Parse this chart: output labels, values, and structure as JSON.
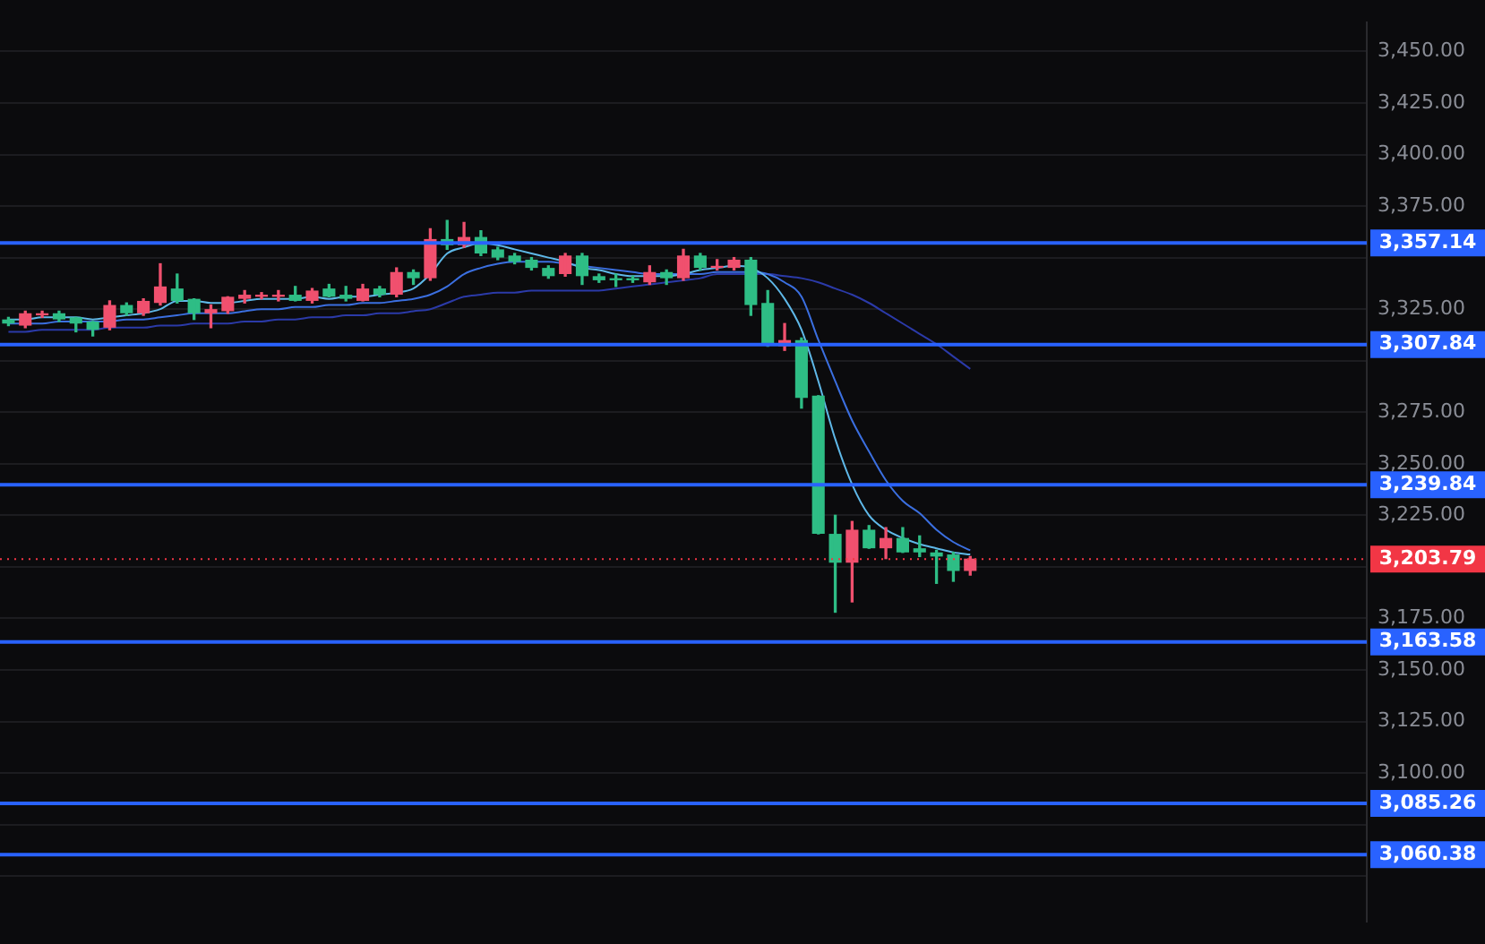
{
  "chart_data": {
    "type": "candlestick",
    "categories": [
      null,
      null,
      null,
      null,
      null,
      null,
      null,
      null,
      null,
      null,
      null,
      null,
      null,
      null,
      null,
      null,
      null,
      null,
      null,
      null,
      null,
      null,
      null,
      null,
      null,
      null,
      null,
      null,
      null,
      null,
      null,
      null,
      null,
      null,
      null,
      null,
      null,
      null,
      null,
      null,
      null,
      null,
      null,
      null,
      null,
      null,
      null,
      null,
      null,
      null,
      null,
      null,
      null,
      null,
      null,
      null,
      null,
      null,
      null,
      null,
      null,
      null,
      null,
      null,
      null,
      null,
      null,
      null,
      null,
      null,
      null,
      null,
      null,
      null,
      null,
      null,
      null,
      null,
      null,
      null,
      null
    ],
    "ohlc": [
      [
        3320,
        3321,
        3317,
        3318
      ],
      [
        3317,
        3324,
        3316,
        3323
      ],
      [
        3322,
        3324,
        3321,
        3323
      ],
      [
        3323,
        3324,
        3319,
        3320
      ],
      [
        3321,
        3321,
        3314,
        3318
      ],
      [
        3319,
        3319,
        3312,
        3315
      ],
      [
        3316,
        3329,
        3315,
        3327
      ],
      [
        3327,
        3328,
        3322,
        3323
      ],
      [
        3323,
        3330,
        3322,
        3329
      ],
      [
        3328,
        3347,
        3327,
        3336
      ],
      [
        3335,
        3342,
        3328,
        3329
      ],
      [
        3330,
        3330,
        3320,
        3323
      ],
      [
        3323,
        3327,
        3316,
        3325
      ],
      [
        3324,
        3331,
        3323,
        3331
      ],
      [
        3330,
        3334,
        3328,
        3332
      ],
      [
        3331,
        3333,
        3330,
        3332
      ],
      [
        3331,
        3334,
        3329,
        3332
      ],
      [
        3332,
        3336,
        3329,
        3329
      ],
      [
        3329,
        3335,
        3328,
        3334
      ],
      [
        3335,
        3337,
        3331,
        3331
      ],
      [
        3332,
        3336,
        3329,
        3330
      ],
      [
        3329,
        3337,
        3329,
        3335
      ],
      [
        3335,
        3336,
        3331,
        3332
      ],
      [
        3332,
        3345,
        3331,
        3343
      ],
      [
        3343,
        3344,
        3337,
        3340
      ],
      [
        3340,
        3364,
        3339,
        3359
      ],
      [
        3359,
        3368,
        3354,
        3356
      ],
      [
        3356,
        3367,
        3355,
        3360
      ],
      [
        3360,
        3363,
        3351,
        3352
      ],
      [
        3354,
        3355,
        3349,
        3350
      ],
      [
        3351,
        3352,
        3347,
        3348
      ],
      [
        3349,
        3350,
        3344,
        3345
      ],
      [
        3345,
        3346,
        3340,
        3341
      ],
      [
        3342,
        3352,
        3341,
        3351
      ],
      [
        3351,
        3352,
        3337,
        3341
      ],
      [
        3341,
        3342,
        3338,
        3339
      ],
      [
        3340,
        3342,
        3336,
        3339
      ],
      [
        3340,
        3341,
        3338,
        3339
      ],
      [
        3338,
        3346,
        3337,
        3343
      ],
      [
        3343,
        3344,
        3337,
        3340
      ],
      [
        3340,
        3354,
        3339,
        3351
      ],
      [
        3351,
        3352,
        3344,
        3345
      ],
      [
        3345,
        3349,
        3344,
        3346
      ],
      [
        3345,
        3350,
        3344,
        3349
      ],
      [
        3349,
        3350,
        3322,
        3327
      ],
      [
        3328,
        3334,
        3307,
        3308
      ],
      [
        3307,
        3318,
        3305,
        3310
      ],
      [
        3310,
        3311,
        3277,
        3282
      ],
      [
        3283,
        3283,
        3216,
        3216
      ],
      [
        3216,
        3225,
        3178,
        3202
      ],
      [
        3202,
        3222,
        3183,
        3218
      ],
      [
        3218,
        3220,
        3209,
        3209
      ],
      [
        3209,
        3219,
        3204,
        3214
      ],
      [
        3214,
        3219,
        3207,
        3207
      ],
      [
        3209,
        3215,
        3205,
        3207
      ],
      [
        3207,
        3208,
        3192,
        3205
      ],
      [
        3206,
        3207,
        3193,
        3198
      ],
      [
        3198,
        3205,
        3196,
        3204
      ],
      null,
      null,
      null,
      null,
      null,
      null,
      null,
      null,
      null,
      null,
      null,
      null,
      null,
      null,
      null,
      null,
      null,
      null,
      null,
      null,
      null,
      null,
      null
    ],
    "colors": [
      "#2ebd85",
      "#f0506e",
      "#f0506e",
      "#2ebd85",
      "#2ebd85",
      "#2ebd85",
      "#f0506e",
      "#2ebd85",
      "#f0506e",
      "#f0506e",
      "#2ebd85",
      "#2ebd85",
      "#f0506e",
      "#f0506e",
      "#f0506e",
      "#f0506e",
      "#f0506e",
      "#2ebd85",
      "#f0506e",
      "#2ebd85",
      "#2ebd85",
      "#f0506e",
      "#2ebd85",
      "#f0506e",
      "#2ebd85",
      "#f0506e",
      "#2ebd85",
      "#f0506e",
      "#2ebd85",
      "#2ebd85",
      "#2ebd85",
      "#2ebd85",
      "#2ebd85",
      "#f0506e",
      "#2ebd85",
      "#2ebd85",
      "#2ebd85",
      "#2ebd85",
      "#f0506e",
      "#2ebd85",
      "#f0506e",
      "#2ebd85",
      "#f0506e",
      "#f0506e",
      "#2ebd85",
      "#2ebd85",
      "#f0506e",
      "#2ebd85",
      "#2ebd85",
      "#2ebd85",
      "#f0506e",
      "#2ebd85",
      "#f0506e",
      "#2ebd85",
      "#2ebd85",
      "#2ebd85",
      "#2ebd85",
      "#f0506e",
      null,
      null,
      null,
      null,
      null,
      null,
      null,
      null,
      null,
      null,
      null,
      null,
      null,
      null,
      null,
      null,
      null,
      null,
      null,
      null,
      null,
      null,
      null
    ],
    "series": [
      {
        "type": "line",
        "color": "#5fb8e8",
        "values": [
          3320,
          3320,
          3321,
          3321,
          3321,
          3320,
          3321,
          3322,
          3323,
          3325,
          3329,
          3329,
          3328,
          3328,
          3329,
          3330,
          3330,
          3330,
          3331,
          3330,
          3331,
          3331,
          3332,
          3333,
          3335,
          3342,
          3352,
          3355,
          3357,
          3356,
          3354,
          3352,
          3350,
          3348,
          3345,
          3344,
          3342,
          3341,
          3341,
          3341,
          3342,
          3344,
          3345,
          3346,
          3345,
          3340,
          3330,
          3315,
          3290,
          3262,
          3240,
          3225,
          3218,
          3214,
          3211,
          3209,
          3207,
          3206,
          null,
          null,
          null,
          null,
          null,
          null,
          null,
          null,
          null,
          null,
          null,
          null,
          null,
          null,
          null,
          null,
          null,
          null,
          null,
          null,
          null,
          null,
          null
        ]
      },
      {
        "type": "line",
        "color": "#3b6fe0",
        "values": [
          3318,
          3318,
          3318,
          3319,
          3319,
          3319,
          3319,
          3320,
          3320,
          3321,
          3322,
          3323,
          3323,
          3323,
          3324,
          3325,
          3325,
          3326,
          3326,
          3327,
          3327,
          3328,
          3328,
          3329,
          3330,
          3332,
          3336,
          3342,
          3345,
          3347,
          3348,
          3348,
          3348,
          3347,
          3346,
          3345,
          3344,
          3343,
          3342,
          3342,
          3342,
          3342,
          3343,
          3343,
          3343,
          3342,
          3338,
          3331,
          3310,
          3290,
          3271,
          3256,
          3242,
          3232,
          3226,
          3218,
          3212,
          3208,
          null,
          null,
          null,
          null,
          null,
          null,
          null,
          null,
          null,
          null,
          null,
          null,
          null,
          null,
          null,
          null,
          null,
          null,
          null,
          null,
          null,
          null,
          null
        ]
      },
      {
        "type": "line",
        "color": "#2b3aa8",
        "values": [
          3314,
          3314,
          3315,
          3315,
          3315,
          3315,
          3316,
          3316,
          3316,
          3317,
          3317,
          3318,
          3318,
          3318,
          3319,
          3319,
          3320,
          3320,
          3321,
          3321,
          3322,
          3322,
          3323,
          3323,
          3324,
          3325,
          3328,
          3331,
          3332,
          3333,
          3333,
          3334,
          3334,
          3334,
          3334,
          3334,
          3335,
          3336,
          3337,
          3338,
          3339,
          3340,
          3342,
          3342,
          3342,
          3342,
          3341,
          3340,
          3338,
          3335,
          3332,
          3328,
          3323,
          3318,
          3313,
          3308,
          3302,
          3296,
          null,
          null,
          null,
          null,
          null,
          null,
          null,
          null,
          null,
          null,
          null,
          null,
          null,
          null,
          null,
          null,
          null,
          null,
          null,
          null,
          null,
          null,
          null
        ]
      }
    ],
    "ylim": [
      3028,
      3464
    ],
    "yticks": [
      {
        "value": 3050,
        "label": null
      },
      {
        "value": 3075,
        "label": null
      },
      {
        "value": 3100,
        "label": "3,100.00"
      },
      {
        "value": 3125,
        "label": "3,125.00"
      },
      {
        "value": 3150,
        "label": "3,150.00"
      },
      {
        "value": 3175,
        "label": "3,175.00"
      },
      {
        "value": 3200,
        "label": null
      },
      {
        "value": 3225,
        "label": "3,225.00"
      },
      {
        "value": 3250,
        "label": "3,250.00"
      },
      {
        "value": 3275,
        "label": "3,275.00"
      },
      {
        "value": 3300,
        "label": null
      },
      {
        "value": 3325,
        "label": "3,325.00"
      },
      {
        "value": 3350,
        "label": null
      },
      {
        "value": 3375,
        "label": "3,375.00"
      },
      {
        "value": 3400,
        "label": "3,400.00"
      },
      {
        "value": 3425,
        "label": "3,425.00"
      },
      {
        "value": 3450,
        "label": "3,450.00"
      }
    ],
    "ref_lines": [
      {
        "axis": "y",
        "value": 3357.14,
        "label": "3,357.14",
        "color": "#2962ff",
        "line_style": "solid"
      },
      {
        "axis": "y",
        "value": 3307.84,
        "label": "3,307.84",
        "color": "#2962ff",
        "line_style": "solid"
      },
      {
        "axis": "y",
        "value": 3239.84,
        "label": "3,239.84",
        "color": "#2962ff",
        "line_style": "solid"
      },
      {
        "axis": "y",
        "value": 3203.79,
        "label": "3,203.79",
        "color": "#f23645",
        "line_style": "dotted"
      },
      {
        "axis": "y",
        "value": 3163.58,
        "label": "3,163.58",
        "color": "#2962ff",
        "line_style": "solid"
      },
      {
        "axis": "y",
        "value": 3085.26,
        "label": "3,085.26",
        "color": "#2962ff",
        "line_style": "solid"
      },
      {
        "axis": "y",
        "value": 3060.38,
        "label": "3,060.38",
        "color": "#2962ff",
        "line_style": "solid"
      }
    ],
    "grid": "y",
    "legend": false,
    "tick_labels": "y"
  }
}
